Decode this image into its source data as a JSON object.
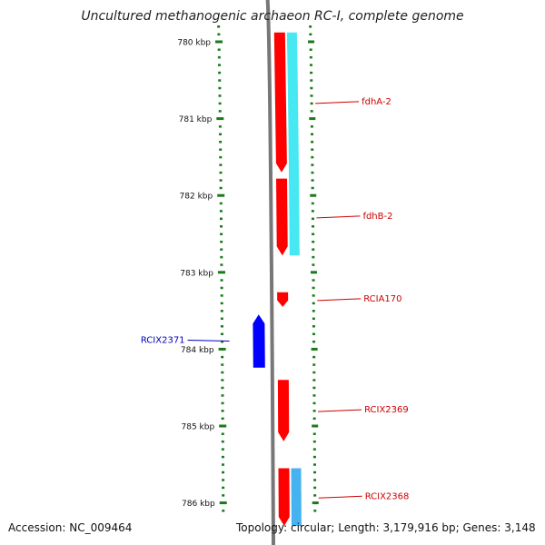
{
  "title": "Uncultured methanogenic archaeon RC-I, complete genome",
  "footer": {
    "accession": "Accession: NC_009464",
    "info": "Topology: circular; Length: 3,179,916 bp; Genes: 3,148"
  },
  "colors": {
    "backbone": "#777777",
    "tick": "#1a7a1a",
    "forward_gene": "#ff0000",
    "reverse_gene": "#0000ff",
    "cyan_feature": "#33e6f0",
    "light_blue_feature": "#33aaee",
    "forward_label": "#cc0000",
    "reverse_label": "#0000bb"
  },
  "map": {
    "ticks": [
      {
        "kbp": 780,
        "label": "780 kbp"
      },
      {
        "kbp": 781,
        "label": "781 kbp"
      },
      {
        "kbp": 782,
        "label": "782 kbp"
      },
      {
        "kbp": 783,
        "label": "783 kbp"
      },
      {
        "kbp": 784,
        "label": "784 kbp"
      },
      {
        "kbp": 785,
        "label": "785 kbp"
      },
      {
        "kbp": 786,
        "label": "786 kbp"
      }
    ],
    "genes": [
      {
        "name": "fdhA-2",
        "label": "fdhA-2",
        "strand": "+",
        "track": "forward",
        "start_kbp": 779.88,
        "end_kbp": 781.7
      },
      {
        "name": "fdhB-2",
        "label": "fdhB-2",
        "strand": "+",
        "track": "forward",
        "start_kbp": 781.78,
        "end_kbp": 782.78
      },
      {
        "name": "RCIA170",
        "label": "RCIA170",
        "strand": "+",
        "track": "forward",
        "start_kbp": 783.26,
        "end_kbp": 783.45
      },
      {
        "name": "RCIX2371",
        "label": "RCIX2371",
        "strand": "-",
        "track": "reverse",
        "start_kbp": 783.55,
        "end_kbp": 784.24
      },
      {
        "name": "RCIX2369",
        "label": "RCIX2369",
        "strand": "+",
        "track": "forward",
        "start_kbp": 784.4,
        "end_kbp": 785.2
      },
      {
        "name": "RCIX2368",
        "label": "RCIX2368",
        "strand": "+",
        "track": "forward",
        "start_kbp": 785.55,
        "end_kbp": 786.3
      }
    ],
    "features": [
      {
        "color": "cyan",
        "start_kbp": 779.88,
        "end_kbp": 782.78
      },
      {
        "color": "lightblue",
        "start_kbp": 785.55,
        "end_kbp": 786.3
      }
    ]
  }
}
